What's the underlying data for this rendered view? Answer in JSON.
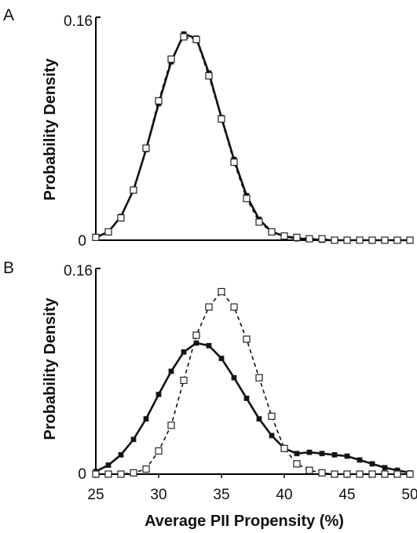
{
  "chart_data": [
    {
      "type": "line",
      "panel_label": "A",
      "ylabel": "Probability Density",
      "xlim": [
        25,
        50
      ],
      "ylim": [
        0,
        0.16
      ],
      "yticks": [
        "0",
        "0.16"
      ],
      "grid": false,
      "series": [
        {
          "marker": "filled-square",
          "line": "solid",
          "x": [
            25,
            26,
            27,
            28,
            29,
            30,
            31,
            32,
            33,
            34,
            35,
            36,
            37,
            38,
            39,
            40,
            41,
            42,
            43,
            44,
            45,
            46,
            47,
            48,
            49,
            50
          ],
          "y": [
            0.002,
            0.006,
            0.017,
            0.036,
            0.065,
            0.098,
            0.128,
            0.148,
            0.145,
            0.12,
            0.088,
            0.058,
            0.032,
            0.015,
            0.006,
            0.003,
            0.001,
            0.001,
            0,
            0,
            0,
            0,
            0,
            0,
            0,
            0
          ]
        },
        {
          "marker": "open-square",
          "line": "dashed",
          "x": [
            25,
            26,
            27,
            28,
            29,
            30,
            31,
            32,
            33,
            34,
            35,
            36,
            37,
            38,
            39,
            40,
            41,
            42,
            43,
            44,
            45,
            46,
            47,
            48,
            49,
            50
          ],
          "y": [
            0.002,
            0.006,
            0.016,
            0.036,
            0.066,
            0.1,
            0.13,
            0.146,
            0.144,
            0.118,
            0.087,
            0.056,
            0.03,
            0.013,
            0.006,
            0.003,
            0.002,
            0.001,
            0.001,
            0,
            0,
            0,
            0,
            0,
            0,
            0
          ]
        }
      ]
    },
    {
      "type": "line",
      "panel_label": "B",
      "ylabel": "Probability Density",
      "xlabel": "Average PII Propensity (%)",
      "xlim": [
        25,
        50
      ],
      "ylim": [
        0,
        0.16
      ],
      "yticks": [
        "0",
        "0.16"
      ],
      "xticks": [
        "25",
        "30",
        "35",
        "40",
        "45",
        "50"
      ],
      "grid": false,
      "series": [
        {
          "marker": "filled-square",
          "line": "solid",
          "x": [
            25,
            26,
            27,
            28,
            29,
            30,
            31,
            32,
            33,
            34,
            35,
            36,
            37,
            38,
            39,
            40,
            41,
            42,
            43,
            44,
            45,
            46,
            47,
            48,
            49,
            50
          ],
          "y": [
            0.002,
            0.007,
            0.015,
            0.027,
            0.043,
            0.062,
            0.08,
            0.095,
            0.102,
            0.1,
            0.09,
            0.075,
            0.059,
            0.043,
            0.03,
            0.02,
            0.016,
            0.017,
            0.016,
            0.015,
            0.014,
            0.011,
            0.008,
            0.005,
            0.003,
            0.001
          ]
        },
        {
          "marker": "open-square",
          "line": "dashed",
          "x": [
            25,
            26,
            27,
            28,
            29,
            30,
            31,
            32,
            33,
            34,
            35,
            36,
            37,
            38,
            39,
            40,
            41,
            42,
            43,
            44,
            45,
            46,
            47,
            48,
            49,
            50
          ],
          "y": [
            0,
            0,
            0,
            0.001,
            0.004,
            0.018,
            0.038,
            0.073,
            0.108,
            0.13,
            0.142,
            0.13,
            0.105,
            0.075,
            0.045,
            0.02,
            0.008,
            0.003,
            0.001,
            0,
            0,
            0,
            0,
            0,
            0,
            0
          ]
        }
      ]
    }
  ]
}
